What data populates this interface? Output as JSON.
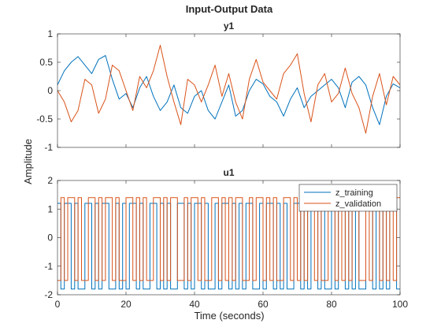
{
  "chart_data": {
    "type": "line",
    "title": "Input-Output Data",
    "ylabel": "Amplitude",
    "xlabel": "Time (seconds)",
    "xlim": [
      0,
      100
    ],
    "x_ticks": [
      "0",
      "20",
      "40",
      "60",
      "80",
      "100"
    ],
    "series_colors": {
      "z_training": "#0072BD",
      "z_validation": "#D95319"
    },
    "legend": {
      "placement": "top-right",
      "entries": [
        "z_training",
        "z_validation"
      ]
    },
    "subplots": [
      {
        "name": "y1",
        "title": "y1",
        "ylim": [
          -1,
          1
        ],
        "y_ticks": [
          "-1",
          "-0.5",
          "0",
          "0.5",
          "1"
        ],
        "y_tick_values": [
          -1,
          -0.5,
          0,
          0.5,
          1
        ],
        "series": [
          {
            "name": "z_training",
            "x": [
              0,
              2,
              4,
              6,
              8,
              10,
              12,
              14,
              16,
              18,
              20,
              22,
              24,
              26,
              28,
              30,
              32,
              34,
              36,
              38,
              40,
              42,
              44,
              46,
              48,
              50,
              52,
              54,
              56,
              58,
              60,
              62,
              64,
              66,
              68,
              70,
              72,
              74,
              76,
              78,
              80,
              82,
              84,
              86,
              88,
              90,
              92,
              94,
              96,
              98,
              100
            ],
            "y": [
              0.1,
              0.35,
              0.5,
              0.6,
              0.45,
              0.3,
              0.55,
              0.62,
              0.2,
              -0.15,
              -0.05,
              -0.3,
              0.05,
              0.25,
              -0.1,
              -0.35,
              -0.2,
              0.1,
              -0.3,
              -0.4,
              -0.1,
              0.0,
              -0.35,
              -0.5,
              -0.2,
              0.1,
              -0.45,
              -0.35,
              0.0,
              0.2,
              0.12,
              -0.1,
              -0.2,
              -0.45,
              -0.15,
              0.05,
              -0.3,
              -0.1,
              0.0,
              0.1,
              0.2,
              0.05,
              -0.3,
              0.15,
              0.25,
              0.1,
              -0.3,
              -0.6,
              -0.1,
              0.12,
              0.05
            ]
          },
          {
            "name": "z_validation",
            "x": [
              0,
              2,
              4,
              6,
              8,
              10,
              12,
              14,
              16,
              18,
              20,
              22,
              24,
              26,
              28,
              30,
              32,
              34,
              36,
              38,
              40,
              42,
              44,
              46,
              48,
              50,
              52,
              54,
              56,
              58,
              60,
              62,
              64,
              66,
              68,
              70,
              72,
              74,
              76,
              78,
              80,
              82,
              84,
              86,
              88,
              90,
              92,
              94,
              96,
              98,
              100
            ],
            "y": [
              0.0,
              -0.2,
              -0.55,
              -0.35,
              0.2,
              0.1,
              -0.4,
              -0.15,
              0.45,
              0.35,
              0.0,
              -0.35,
              0.25,
              0.05,
              0.35,
              0.8,
              0.25,
              -0.2,
              -0.6,
              0.2,
              0.1,
              -0.2,
              0.1,
              0.45,
              -0.1,
              0.3,
              -0.2,
              -0.5,
              0.2,
              0.55,
              0.15,
              0.0,
              -0.15,
              0.3,
              0.45,
              0.65,
              -0.05,
              -0.55,
              0.1,
              0.3,
              -0.2,
              -0.05,
              0.4,
              -0.05,
              -0.3,
              -0.75,
              -0.1,
              0.3,
              -0.25,
              0.25,
              0.1
            ]
          }
        ]
      },
      {
        "name": "u1",
        "title": "u1",
        "ylim": [
          -2,
          2
        ],
        "y_ticks": [
          "-2",
          "-1",
          "0",
          "1",
          "2"
        ],
        "y_tick_values": [
          -2,
          -1,
          0,
          1,
          2
        ],
        "series": [
          {
            "name": "z_training",
            "step": true,
            "x": [
              0,
              1,
              2,
              3,
              4,
              5,
              6,
              7,
              8,
              9,
              10,
              11,
              12,
              13,
              14,
              15,
              16,
              17,
              18,
              19,
              20,
              21,
              22,
              23,
              24,
              25,
              26,
              27,
              28,
              29,
              30,
              31,
              32,
              33,
              34,
              35,
              36,
              37,
              38,
              39,
              40,
              41,
              42,
              43,
              44,
              45,
              46,
              47,
              48,
              49,
              50,
              51,
              52,
              53,
              54,
              55,
              56,
              57,
              58,
              59,
              60,
              61,
              62,
              63,
              64,
              65,
              66,
              67,
              68,
              69,
              70,
              71,
              72,
              73,
              74,
              75,
              76,
              77,
              78,
              79,
              80,
              81,
              82,
              83,
              84,
              85,
              86,
              87,
              88,
              89,
              90,
              91,
              92,
              93,
              94,
              95,
              96,
              97,
              98,
              99
            ],
            "y": [
              1.2,
              -1.8,
              1.2,
              1.2,
              -1.8,
              1.2,
              -1.8,
              -1.8,
              1.2,
              1.2,
              -1.8,
              1.2,
              -1.8,
              1.2,
              1.2,
              -1.8,
              -1.8,
              1.2,
              -1.8,
              1.2,
              -1.8,
              1.2,
              1.2,
              -1.8,
              1.2,
              -1.8,
              -1.8,
              1.2,
              1.2,
              -1.8,
              1.2,
              -1.8,
              1.2,
              -1.8,
              -1.8,
              1.2,
              1.2,
              -1.8,
              1.2,
              -1.8,
              1.2,
              1.2,
              -1.8,
              1.2,
              -1.8,
              -1.8,
              1.2,
              -1.8,
              1.2,
              1.2,
              -1.8,
              1.2,
              -1.8,
              1.2,
              -1.8,
              1.2,
              1.2,
              -1.8,
              -1.8,
              1.2,
              -1.8,
              1.2,
              1.2,
              -1.8,
              1.2,
              -1.8,
              1.2,
              -1.8,
              -1.8,
              1.2,
              1.2,
              -1.8,
              1.2,
              -1.8,
              1.2,
              1.2,
              -1.8,
              1.2,
              -1.8,
              -1.8,
              1.2,
              -1.8,
              1.2,
              1.2,
              -1.8,
              1.2,
              -1.8,
              1.2,
              -1.8,
              -1.8,
              1.2,
              1.2,
              -1.8,
              1.2,
              -1.8,
              1.2,
              -1.8,
              1.2,
              1.2,
              -1.8
            ]
          },
          {
            "name": "z_validation",
            "step": true,
            "x": [
              0,
              1,
              2,
              3,
              4,
              5,
              6,
              7,
              8,
              9,
              10,
              11,
              12,
              13,
              14,
              15,
              16,
              17,
              18,
              19,
              20,
              21,
              22,
              23,
              24,
              25,
              26,
              27,
              28,
              29,
              30,
              31,
              32,
              33,
              34,
              35,
              36,
              37,
              38,
              39,
              40,
              41,
              42,
              43,
              44,
              45,
              46,
              47,
              48,
              49,
              50,
              51,
              52,
              53,
              54,
              55,
              56,
              57,
              58,
              59,
              60,
              61,
              62,
              63,
              64,
              65,
              66,
              67,
              68,
              69,
              70,
              71,
              72,
              73,
              74,
              75,
              76,
              77,
              78,
              79,
              80,
              81,
              82,
              83,
              84,
              85,
              86,
              87,
              88,
              89,
              90,
              91,
              92,
              93,
              94,
              95,
              96,
              97,
              98,
              99
            ],
            "y": [
              -1.5,
              1.4,
              -1.5,
              1.4,
              1.4,
              -1.5,
              1.4,
              -1.5,
              -1.5,
              1.4,
              1.4,
              -1.5,
              1.4,
              -1.5,
              1.4,
              1.4,
              -1.5,
              1.4,
              -1.5,
              -1.5,
              1.4,
              1.4,
              -1.5,
              1.4,
              -1.5,
              1.4,
              -1.5,
              -1.5,
              1.4,
              1.4,
              -1.5,
              1.4,
              -1.5,
              1.4,
              1.4,
              -1.5,
              -1.5,
              1.4,
              -1.5,
              1.4,
              1.4,
              -1.5,
              1.4,
              -1.5,
              -1.5,
              1.4,
              1.4,
              -1.5,
              1.4,
              -1.5,
              1.4,
              -1.5,
              1.4,
              1.4,
              -1.5,
              -1.5,
              1.4,
              -1.5,
              1.4,
              1.4,
              -1.5,
              1.4,
              -1.5,
              1.4,
              -1.5,
              -1.5,
              1.4,
              1.4,
              -1.5,
              1.4,
              -1.5,
              1.4,
              -1.5,
              1.4,
              1.4,
              -1.5,
              1.4,
              -1.5,
              -1.5,
              1.4,
              1.4,
              -1.5,
              1.4,
              -1.5,
              1.4,
              -1.5,
              1.4,
              1.4,
              -1.5,
              -1.5,
              1.4,
              -1.5,
              1.4,
              1.4,
              -1.5,
              1.4,
              -1.5,
              1.4,
              -1.5,
              1.4
            ]
          }
        ]
      }
    ]
  }
}
